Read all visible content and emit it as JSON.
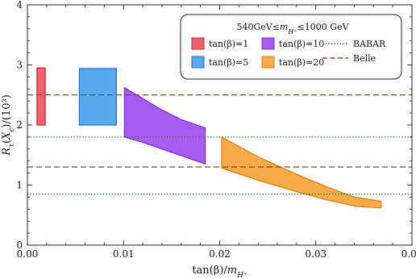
{
  "chart_data": {
    "type": "area",
    "xlabel": "tan(β)/m_{H⁺}",
    "ylabel": "R_τ(X_c)/(10³)",
    "xlim": [
      0,
      0.04
    ],
    "ylim": [
      0,
      4
    ],
    "xticks": [
      0.0,
      0.01,
      0.02,
      0.03,
      0.04
    ],
    "xtick_labels": [
      "0.00",
      "0.01",
      "0.02",
      "0.03",
      "0.04"
    ],
    "yticks": [
      0,
      1,
      2,
      3,
      4
    ],
    "ytick_labels": [
      "0",
      "1",
      "2",
      "3",
      "4"
    ],
    "legend_title": "540GeV≤m_{H⁺}≤1000 GeV",
    "legend_placement": "top-right",
    "bands": [
      {
        "name": "tan(β)=1",
        "fill": "#f0606a",
        "stroke": "#d81e32",
        "x": [
          0.001,
          0.00185
        ],
        "lower": [
          2.0,
          2.0
        ],
        "upper": [
          2.95,
          2.95
        ]
      },
      {
        "name": "tan(β)=5",
        "fill": "#5aa8ee",
        "stroke": "#1f6fc8",
        "x": [
          0.0054,
          0.00925
        ],
        "lower": [
          2.0,
          2.0
        ],
        "upper": [
          2.94,
          2.94
        ]
      },
      {
        "name": "tan(β)=10",
        "fill": "#a65cf0",
        "stroke": "#7a2bd0",
        "x": [
          0.0101,
          0.012,
          0.014,
          0.016,
          0.0185
        ],
        "lower": [
          1.8,
          1.71,
          1.6,
          1.49,
          1.35
        ],
        "upper": [
          2.62,
          2.44,
          2.25,
          2.09,
          1.95
        ]
      },
      {
        "name": "tan(β)=20",
        "fill": "#f6aa48",
        "stroke": "#e07d10",
        "x": [
          0.0202,
          0.024,
          0.028,
          0.031,
          0.034,
          0.0368
        ],
        "lower": [
          1.28,
          1.08,
          0.89,
          0.76,
          0.65,
          0.62
        ],
        "upper": [
          1.8,
          1.47,
          1.18,
          0.98,
          0.8,
          0.73
        ]
      }
    ],
    "reference_lines": [
      {
        "name": "BABAR",
        "style": "dotted",
        "color": "#1a8a1a",
        "values": [
          1.8,
          0.85
        ]
      },
      {
        "name": "Belle",
        "style": "dashed",
        "color": "#8b4513",
        "values": [
          2.5,
          1.3
        ]
      }
    ]
  }
}
